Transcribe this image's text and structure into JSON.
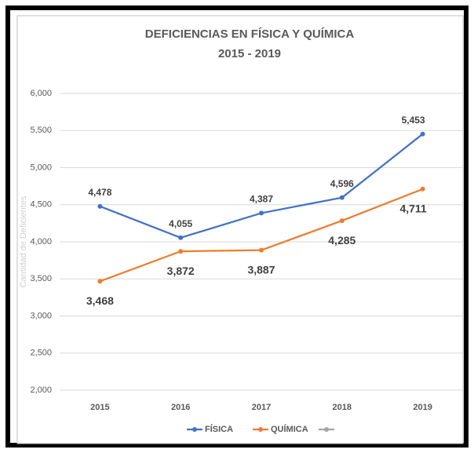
{
  "chart_data": {
    "type": "line",
    "title": "DEFICIENCIAS EN FÍSICA Y QUÍMICA",
    "subtitle": "2015 - 2019",
    "y_label": "Cantidad de Deficientes",
    "categories": [
      "2015",
      "2016",
      "2017",
      "2018",
      "2019"
    ],
    "series": [
      {
        "name": "FÍSICA",
        "color": "#4472c4",
        "values": [
          4478,
          4055,
          4387,
          4596,
          5453
        ],
        "value_labels": [
          "4,478",
          "4,055",
          "4,387",
          "4,596",
          "5,453"
        ]
      },
      {
        "name": "QUÍMICA",
        "color": "#ed7d31",
        "values": [
          3468,
          3872,
          3887,
          4285,
          4711
        ],
        "value_labels": [
          "3,468",
          "3,872",
          "3,887",
          "4,285",
          "4,711"
        ]
      }
    ],
    "ylim": [
      2000,
      6000
    ],
    "yticks": [
      {
        "value": 2000,
        "label": "2,000"
      },
      {
        "value": 2500,
        "label": "2,500"
      },
      {
        "value": 3000,
        "label": "3,000"
      },
      {
        "value": 3500,
        "label": "3,500"
      },
      {
        "value": 4000,
        "label": "4,000"
      },
      {
        "value": 4500,
        "label": "4,500"
      },
      {
        "value": 5000,
        "label": "5,000"
      },
      {
        "value": 5500,
        "label": "5,500"
      },
      {
        "value": 6000,
        "label": "6,000"
      }
    ],
    "grid": true,
    "legend": "bottom"
  }
}
